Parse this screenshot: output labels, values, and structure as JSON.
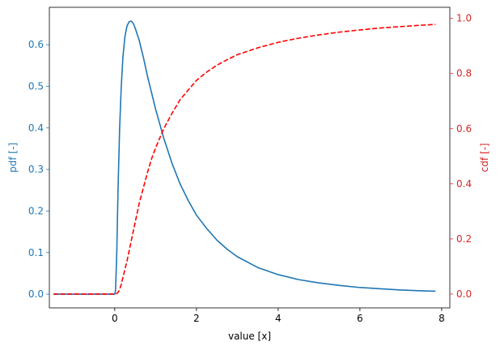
{
  "chart_data": {
    "type": "line",
    "title": "",
    "xlabel": "value [x]",
    "xlim": [
      -1.6,
      8.2
    ],
    "x_ticks": [
      0,
      2,
      4,
      6,
      8
    ],
    "x_tick_labels": [
      "0",
      "2",
      "4",
      "6",
      "8"
    ],
    "grid": false,
    "left_axis": {
      "label": "pdf [-]",
      "color": "#1f77b4",
      "ylim": [
        -0.033,
        0.69
      ],
      "ticks": [
        0.0,
        0.1,
        0.2,
        0.3,
        0.4,
        0.5,
        0.6
      ],
      "tick_labels": [
        "0.0",
        "0.1",
        "0.2",
        "0.3",
        "0.4",
        "0.5",
        "0.6"
      ]
    },
    "right_axis": {
      "label": "cdf [-]",
      "color": "#d62728",
      "ylim": [
        -0.05,
        1.04
      ],
      "ticks": [
        0.0,
        0.2,
        0.4,
        0.6,
        0.8,
        1.0
      ],
      "tick_labels": [
        "0.0",
        "0.2",
        "0.4",
        "0.6",
        "0.8",
        "1.0"
      ]
    },
    "series": [
      {
        "axis": "left",
        "style": "solid",
        "color": "#1f77b4",
        "points": [
          [
            -1.5,
            0.0
          ],
          [
            0.0,
            0.0
          ],
          [
            0.02,
            0.01
          ],
          [
            0.05,
            0.1
          ],
          [
            0.08,
            0.25
          ],
          [
            0.12,
            0.4
          ],
          [
            0.16,
            0.5
          ],
          [
            0.2,
            0.57
          ],
          [
            0.25,
            0.62
          ],
          [
            0.3,
            0.645
          ],
          [
            0.35,
            0.655
          ],
          [
            0.4,
            0.657
          ],
          [
            0.45,
            0.652
          ],
          [
            0.5,
            0.64
          ],
          [
            0.6,
            0.61
          ],
          [
            0.7,
            0.57
          ],
          [
            0.8,
            0.525
          ],
          [
            0.9,
            0.485
          ],
          [
            1.0,
            0.445
          ],
          [
            1.2,
            0.375
          ],
          [
            1.4,
            0.315
          ],
          [
            1.6,
            0.265
          ],
          [
            1.8,
            0.225
          ],
          [
            2.0,
            0.19
          ],
          [
            2.25,
            0.158
          ],
          [
            2.5,
            0.13
          ],
          [
            2.75,
            0.108
          ],
          [
            3.0,
            0.09
          ],
          [
            3.5,
            0.064
          ],
          [
            4.0,
            0.047
          ],
          [
            4.5,
            0.035
          ],
          [
            5.0,
            0.027
          ],
          [
            5.5,
            0.021
          ],
          [
            6.0,
            0.016
          ],
          [
            6.5,
            0.013
          ],
          [
            7.0,
            0.01
          ],
          [
            7.5,
            0.008
          ],
          [
            7.85,
            0.007
          ]
        ]
      },
      {
        "axis": "right",
        "style": "dashed",
        "color": "#ff0000",
        "points": [
          [
            -1.5,
            0.0
          ],
          [
            0.0,
            0.0
          ],
          [
            0.05,
            0.002
          ],
          [
            0.1,
            0.01
          ],
          [
            0.15,
            0.03
          ],
          [
            0.2,
            0.06
          ],
          [
            0.3,
            0.12
          ],
          [
            0.4,
            0.19
          ],
          [
            0.5,
            0.26
          ],
          [
            0.6,
            0.33
          ],
          [
            0.7,
            0.385
          ],
          [
            0.8,
            0.44
          ],
          [
            0.9,
            0.49
          ],
          [
            1.0,
            0.53
          ],
          [
            1.2,
            0.6
          ],
          [
            1.4,
            0.655
          ],
          [
            1.6,
            0.705
          ],
          [
            1.8,
            0.74
          ],
          [
            2.0,
            0.775
          ],
          [
            2.25,
            0.805
          ],
          [
            2.5,
            0.83
          ],
          [
            2.75,
            0.85
          ],
          [
            3.0,
            0.868
          ],
          [
            3.5,
            0.893
          ],
          [
            4.0,
            0.913
          ],
          [
            4.5,
            0.928
          ],
          [
            5.0,
            0.94
          ],
          [
            5.5,
            0.95
          ],
          [
            6.0,
            0.958
          ],
          [
            6.5,
            0.965
          ],
          [
            7.0,
            0.97
          ],
          [
            7.5,
            0.975
          ],
          [
            7.85,
            0.978
          ]
        ]
      }
    ]
  }
}
